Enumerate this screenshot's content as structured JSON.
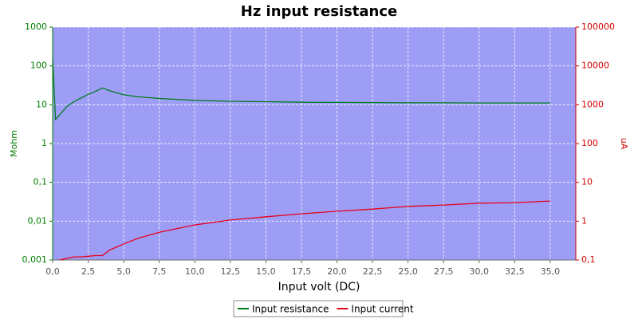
{
  "chart_data": {
    "type": "line",
    "title": "Hz input resistance",
    "xlabel": "Input volt (DC)",
    "ylabel": "Mohm",
    "y2label": "uA",
    "x": [
      0,
      0.2,
      0.5,
      1,
      1.5,
      2,
      2.5,
      3,
      3.5,
      4,
      5,
      6,
      7.5,
      10,
      12.5,
      15,
      17.5,
      20,
      22.5,
      25,
      27.5,
      30,
      32.5,
      35
    ],
    "series": [
      {
        "name": "Input resistance",
        "color": "#007a1e",
        "axis": "y",
        "values": [
          166,
          4.2,
          5.5,
          9,
          12,
          15,
          18.5,
          22,
          27,
          23,
          18,
          16,
          14.5,
          13,
          12.3,
          12,
          11.6,
          11.5,
          11.4,
          11.2,
          11.2,
          11.1,
          11.1,
          11.1
        ]
      },
      {
        "name": "Input current",
        "color": "#e8001c",
        "axis": "y2",
        "values": [
          null,
          null,
          0.1,
          0.11,
          0.12,
          0.12,
          0.125,
          0.13,
          0.13,
          0.18,
          0.26,
          0.36,
          0.52,
          0.8,
          1.07,
          1.3,
          1.55,
          1.8,
          2.05,
          2.4,
          2.6,
          2.9,
          3.0,
          3.3
        ]
      }
    ],
    "xlim": [
      0,
      36.8
    ],
    "xticks": [
      {
        "value": 0,
        "label": "0,0"
      },
      {
        "value": 2.5,
        "label": "2,5"
      },
      {
        "value": 5,
        "label": "5,0"
      },
      {
        "value": 7.5,
        "label": "7,5"
      },
      {
        "value": 10,
        "label": "10,0"
      },
      {
        "value": 12.5,
        "label": "12,5"
      },
      {
        "value": 15,
        "label": "15,0"
      },
      {
        "value": 17.5,
        "label": "17,5"
      },
      {
        "value": 20,
        "label": "20,0"
      },
      {
        "value": 22.5,
        "label": "22,5"
      },
      {
        "value": 25,
        "label": "25,0"
      },
      {
        "value": 27.5,
        "label": "27,5"
      },
      {
        "value": 30,
        "label": "30,0"
      },
      {
        "value": 32.5,
        "label": "32,5"
      },
      {
        "value": 35,
        "label": "35,0"
      }
    ],
    "ylim": [
      0.001,
      1000
    ],
    "ylog": true,
    "yticks": [
      {
        "value": 0.001,
        "label": "0,001"
      },
      {
        "value": 0.01,
        "label": "0,01"
      },
      {
        "value": 0.1,
        "label": "0,1"
      },
      1,
      10,
      100,
      1000
    ],
    "y2lim": [
      0.1,
      100000
    ],
    "y2log": true,
    "y2ticks": [
      {
        "value": 0.1,
        "label": "0,1"
      },
      1,
      10,
      100,
      1000,
      10000,
      100000
    ],
    "grid": true,
    "legend": "bottom"
  }
}
